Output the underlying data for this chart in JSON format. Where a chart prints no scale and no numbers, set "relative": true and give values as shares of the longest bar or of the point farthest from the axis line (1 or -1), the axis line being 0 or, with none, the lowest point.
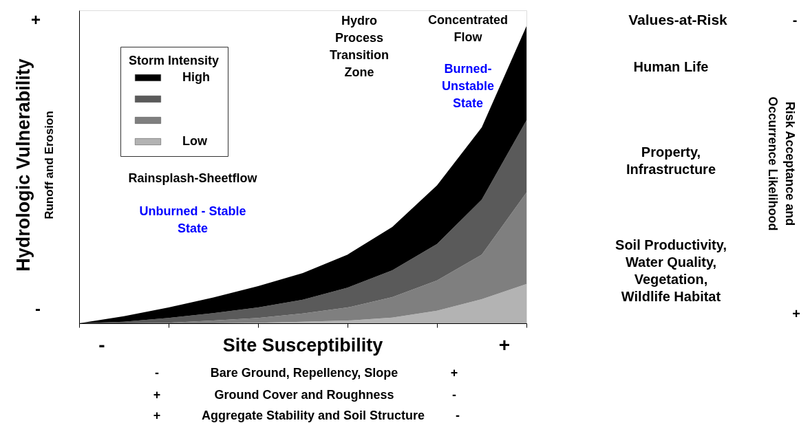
{
  "chart_data": {
    "type": "area",
    "stacked": true,
    "relative": true,
    "ylabel": "Hydrologic Vulnerability",
    "xlabel": "Site Susceptibility",
    "legend_title": "Storm Intensity",
    "categories": [
      null,
      null,
      null,
      null,
      null,
      null,
      null,
      null,
      null,
      null,
      null
    ],
    "grid": false,
    "legend": "top left",
    "series": [
      {
        "name": "Low",
        "color": "#b3b3b3",
        "values": [
          0,
          0,
          0,
          0,
          0.002,
          0.005,
          0.009,
          0.019,
          0.042,
          0.081,
          0.132
        ]
      },
      {
        "color": "#7f7f7f",
        "values": [
          0,
          0,
          0.002,
          0.009,
          0.016,
          0.028,
          0.044,
          0.069,
          0.102,
          0.15,
          0.308
        ]
      },
      {
        "color": "#5a5a5a",
        "values": [
          0,
          0.005,
          0.016,
          0.025,
          0.035,
          0.046,
          0.067,
          0.09,
          0.123,
          0.185,
          0.243
        ]
      },
      {
        "name": "High",
        "color": "#000000",
        "values": [
          0,
          0.019,
          0.035,
          0.053,
          0.072,
          0.09,
          0.111,
          0.146,
          0.197,
          0.243,
          0.317
        ]
      }
    ],
    "annotations": [
      "Runoff and Erosion",
      "+",
      "-",
      "-",
      "+",
      "-",
      "Bare Ground, Repellency, Slope",
      "+",
      "+",
      "Ground Cover and Roughness",
      "-",
      "+",
      "Aggregate Stability and Soil Structure",
      "-",
      "Rainsplash-Sheetflow",
      "Unburned - Stable\nState",
      "Hydro\nProcess\nTransition\nZone",
      "Concentrated\nFlow",
      "Burned-\nUnstable\nState",
      "Values-at-Risk",
      "Human Life",
      "Property,\nInfrastructure",
      "Soil Productivity,\nWater Quality,\nVegetation,\nWildlife Habitat",
      "Risk Acceptance and\nOccurrence Likelihood",
      "-",
      "+"
    ]
  }
}
